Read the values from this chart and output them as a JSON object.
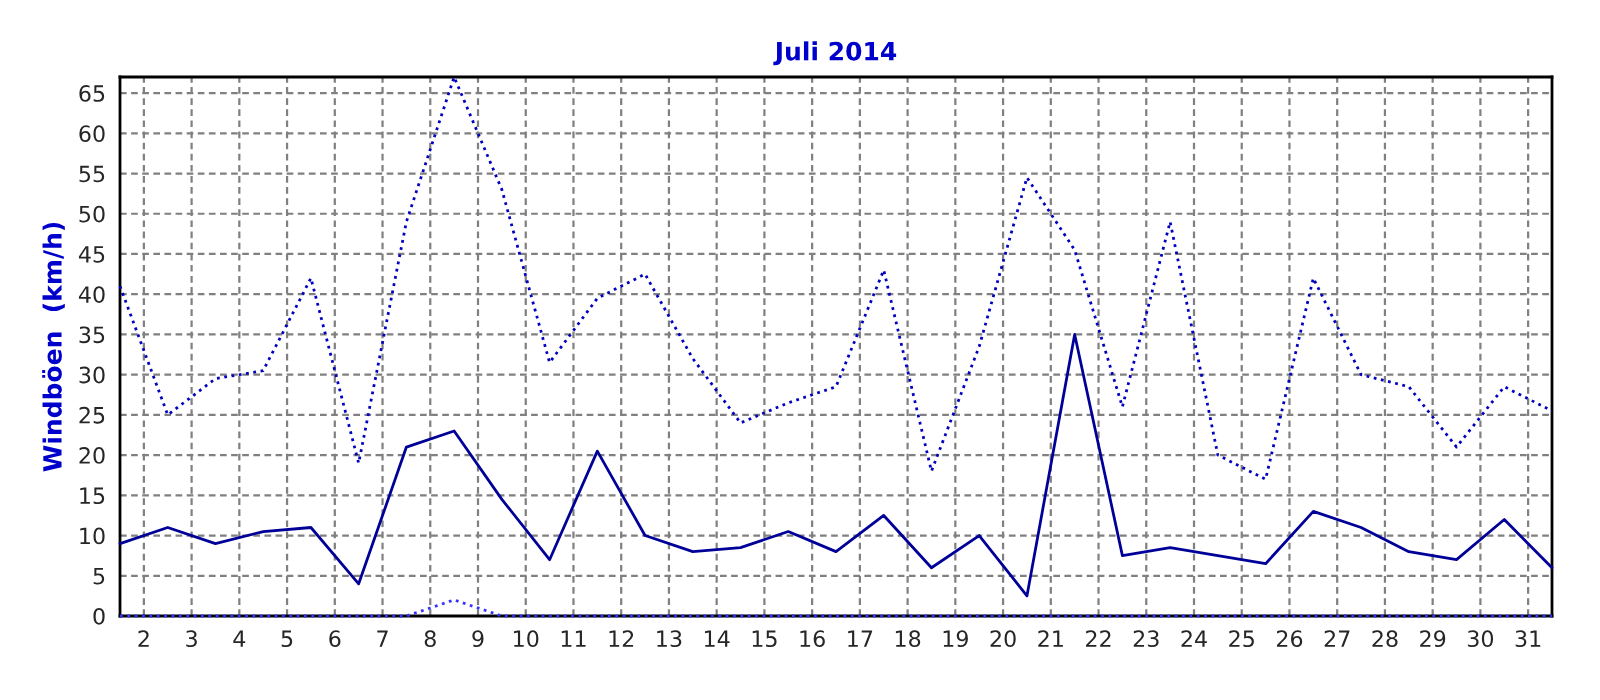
{
  "chart_data": {
    "type": "line",
    "title": "Juli 2014",
    "ylabel": "Windböen  (km/h)",
    "x": [
      1.5,
      2.5,
      3.5,
      4.5,
      5.5,
      6.5,
      7.5,
      8.5,
      9.5,
      10.5,
      11.5,
      12.5,
      13.5,
      14.5,
      15.5,
      16.5,
      17.5,
      18.5,
      19.5,
      20.5,
      21.5,
      22.5,
      23.5,
      24.5,
      25.5,
      26.5,
      27.5,
      28.5,
      29.5,
      30.5,
      31.5
    ],
    "series": [
      {
        "color": "#0000c0",
        "line_style": "dotted",
        "values": [
          41,
          25,
          29.5,
          30.5,
          42,
          19,
          49,
          67,
          53,
          31.5,
          39.5,
          42.5,
          32,
          24,
          26.5,
          28.5,
          43,
          18,
          33.5,
          54.5,
          45.5,
          26,
          49,
          20,
          17,
          42,
          30,
          28.5,
          21,
          28.5,
          25.5
        ]
      },
      {
        "color": "#000099",
        "line_style": "solid",
        "values": [
          9,
          11,
          9,
          10.5,
          11,
          4,
          21,
          23,
          14.5,
          7,
          20.5,
          10,
          8,
          8.5,
          10.5,
          8,
          12.5,
          6,
          10,
          2.5,
          35,
          7.5,
          8.5,
          7.5,
          6.5,
          13,
          11,
          8,
          7,
          12,
          6
        ]
      },
      {
        "color": "#3333ff",
        "line_style": "dotted",
        "values": [
          0,
          0,
          0,
          0,
          0,
          0,
          0,
          2,
          0,
          0,
          0,
          0,
          0,
          0,
          0,
          0,
          0,
          0,
          0,
          0,
          0,
          0,
          0,
          0,
          0,
          0,
          0,
          0,
          0,
          0,
          0
        ]
      }
    ],
    "xlim": [
      1.5,
      31.5
    ],
    "xticks": [
      2,
      3,
      4,
      5,
      6,
      7,
      8,
      9,
      10,
      11,
      12,
      13,
      14,
      15,
      16,
      17,
      18,
      19,
      20,
      21,
      22,
      23,
      24,
      25,
      26,
      27,
      28,
      29,
      30,
      31
    ],
    "ylim": [
      0,
      67
    ],
    "yticks": [
      0,
      5,
      10,
      15,
      20,
      25,
      30,
      35,
      40,
      45,
      50,
      55,
      60,
      65
    ],
    "grid": true,
    "marker": "none"
  }
}
